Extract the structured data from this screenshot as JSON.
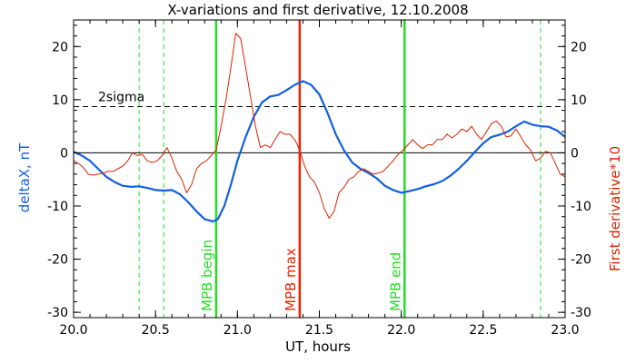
{
  "chart_data": {
    "type": "line",
    "title": "X-variations and first derivative, 12.10.2008",
    "xlabel": "UT, hours",
    "ylabel_left": "deltaX, nT",
    "ylabel_right": "First derivative*10",
    "xlim": [
      20.0,
      23.0
    ],
    "ylim": [
      -31,
      25
    ],
    "x_ticks": [
      "20.0",
      "20.5",
      "21.0",
      "21.5",
      "22.0",
      "22.5",
      "23.0"
    ],
    "y_ticks": [
      "-30",
      "-20",
      "-10",
      "0",
      "10",
      "20"
    ],
    "threshold": {
      "label": "2sigma",
      "value": 8.7
    },
    "zero_line": 0,
    "markers": [
      {
        "x": 20.87,
        "label": "MPB begin",
        "color": "#22dd22"
      },
      {
        "x": 21.38,
        "label": "MPB max",
        "color": "#ee2200"
      },
      {
        "x": 22.02,
        "label": "MPB end",
        "color": "#22dd22"
      }
    ],
    "dashed_markers": [
      20.4,
      20.55,
      22.85
    ],
    "colors": {
      "deltaX": "#1060e0",
      "derivative": "#dd2200",
      "marker_green": "#22dd22",
      "marker_red": "#ee2200"
    },
    "series": [
      {
        "name": "deltaX",
        "x": [
          20.0,
          20.05,
          20.1,
          20.15,
          20.2,
          20.25,
          20.3,
          20.35,
          20.4,
          20.45,
          20.5,
          20.55,
          20.6,
          20.65,
          20.7,
          20.75,
          20.8,
          20.85,
          20.88,
          20.92,
          20.96,
          21.0,
          21.05,
          21.1,
          21.15,
          21.2,
          21.25,
          21.3,
          21.35,
          21.4,
          21.45,
          21.5,
          21.55,
          21.6,
          21.65,
          21.7,
          21.75,
          21.8,
          21.85,
          21.9,
          21.95,
          22.0,
          22.05,
          22.1,
          22.15,
          22.2,
          22.25,
          22.3,
          22.35,
          22.4,
          22.45,
          22.5,
          22.55,
          22.6,
          22.65,
          22.7,
          22.75,
          22.8,
          22.85,
          22.9,
          22.95,
          23.0
        ],
        "values": [
          0.2,
          -0.5,
          -1.5,
          -3.0,
          -4.5,
          -5.5,
          -6.2,
          -6.4,
          -6.3,
          -6.6,
          -7.0,
          -7.1,
          -7.0,
          -7.8,
          -9.3,
          -11.0,
          -12.5,
          -12.9,
          -12.5,
          -10.0,
          -6.0,
          -1.5,
          3.0,
          6.8,
          9.5,
          10.6,
          10.9,
          11.8,
          12.8,
          13.5,
          12.8,
          11.0,
          7.5,
          3.5,
          0.5,
          -1.8,
          -3.0,
          -3.8,
          -4.8,
          -6.2,
          -7.0,
          -7.5,
          -7.2,
          -6.8,
          -6.3,
          -5.9,
          -5.3,
          -4.3,
          -3.0,
          -1.5,
          0.2,
          1.8,
          3.0,
          3.4,
          4.0,
          5.0,
          5.9,
          5.3,
          5.0,
          4.9,
          4.2,
          3.0
        ]
      },
      {
        "name": "First derivative*10",
        "x": [
          20.0,
          20.03,
          20.06,
          20.09,
          20.12,
          20.15,
          20.18,
          20.21,
          20.24,
          20.27,
          20.3,
          20.33,
          20.36,
          20.39,
          20.42,
          20.45,
          20.48,
          20.51,
          20.54,
          20.57,
          20.6,
          20.63,
          20.66,
          20.69,
          20.72,
          20.75,
          20.78,
          20.81,
          20.84,
          20.87,
          20.9,
          20.93,
          20.96,
          20.99,
          21.02,
          21.05,
          21.08,
          21.11,
          21.14,
          21.17,
          21.2,
          21.23,
          21.26,
          21.29,
          21.32,
          21.35,
          21.38,
          21.41,
          21.44,
          21.47,
          21.5,
          21.53,
          21.56,
          21.59,
          21.62,
          21.65,
          21.68,
          21.71,
          21.74,
          21.77,
          21.8,
          21.83,
          21.86,
          21.89,
          21.92,
          21.95,
          21.98,
          22.01,
          22.04,
          22.07,
          22.1,
          22.13,
          22.16,
          22.19,
          22.22,
          22.25,
          22.28,
          22.31,
          22.34,
          22.37,
          22.4,
          22.43,
          22.46,
          22.49,
          22.52,
          22.55,
          22.58,
          22.61,
          22.64,
          22.67,
          22.7,
          22.73,
          22.76,
          22.79,
          22.82,
          22.85,
          22.88,
          22.91,
          22.94,
          22.97,
          23.0
        ],
        "values": [
          -1.5,
          -2.0,
          -2.8,
          -4.0,
          -4.2,
          -4.0,
          -3.8,
          -3.5,
          -3.5,
          -3.0,
          -2.5,
          -1.5,
          0.0,
          -0.5,
          -0.3,
          -1.5,
          -1.8,
          -1.5,
          -0.5,
          1.0,
          -1.0,
          -3.5,
          -5.0,
          -7.5,
          -6.0,
          -3.0,
          -2.0,
          -1.5,
          -0.5,
          0.5,
          5.0,
          10.0,
          16.0,
          22.5,
          21.5,
          16.0,
          10.5,
          5.0,
          1.0,
          1.5,
          1.0,
          2.5,
          4.0,
          3.5,
          3.5,
          2.5,
          0.5,
          -2.5,
          -4.5,
          -5.5,
          -7.5,
          -10.5,
          -12.3,
          -11.0,
          -7.5,
          -6.5,
          -5.0,
          -4.5,
          -3.5,
          -3.0,
          -3.5,
          -4.0,
          -3.8,
          -3.5,
          -2.5,
          -1.5,
          -0.3,
          0.5,
          1.5,
          2.5,
          1.5,
          0.8,
          1.5,
          1.5,
          2.5,
          2.5,
          3.5,
          2.8,
          3.5,
          4.5,
          4.0,
          5.0,
          3.5,
          2.5,
          4.0,
          5.5,
          6.0,
          5.0,
          3.0,
          3.2,
          4.5,
          3.0,
          1.5,
          0.5,
          -1.5,
          -1.0,
          0.3,
          0.0,
          -2.0,
          -4.0,
          -4.5
        ]
      }
    ]
  }
}
